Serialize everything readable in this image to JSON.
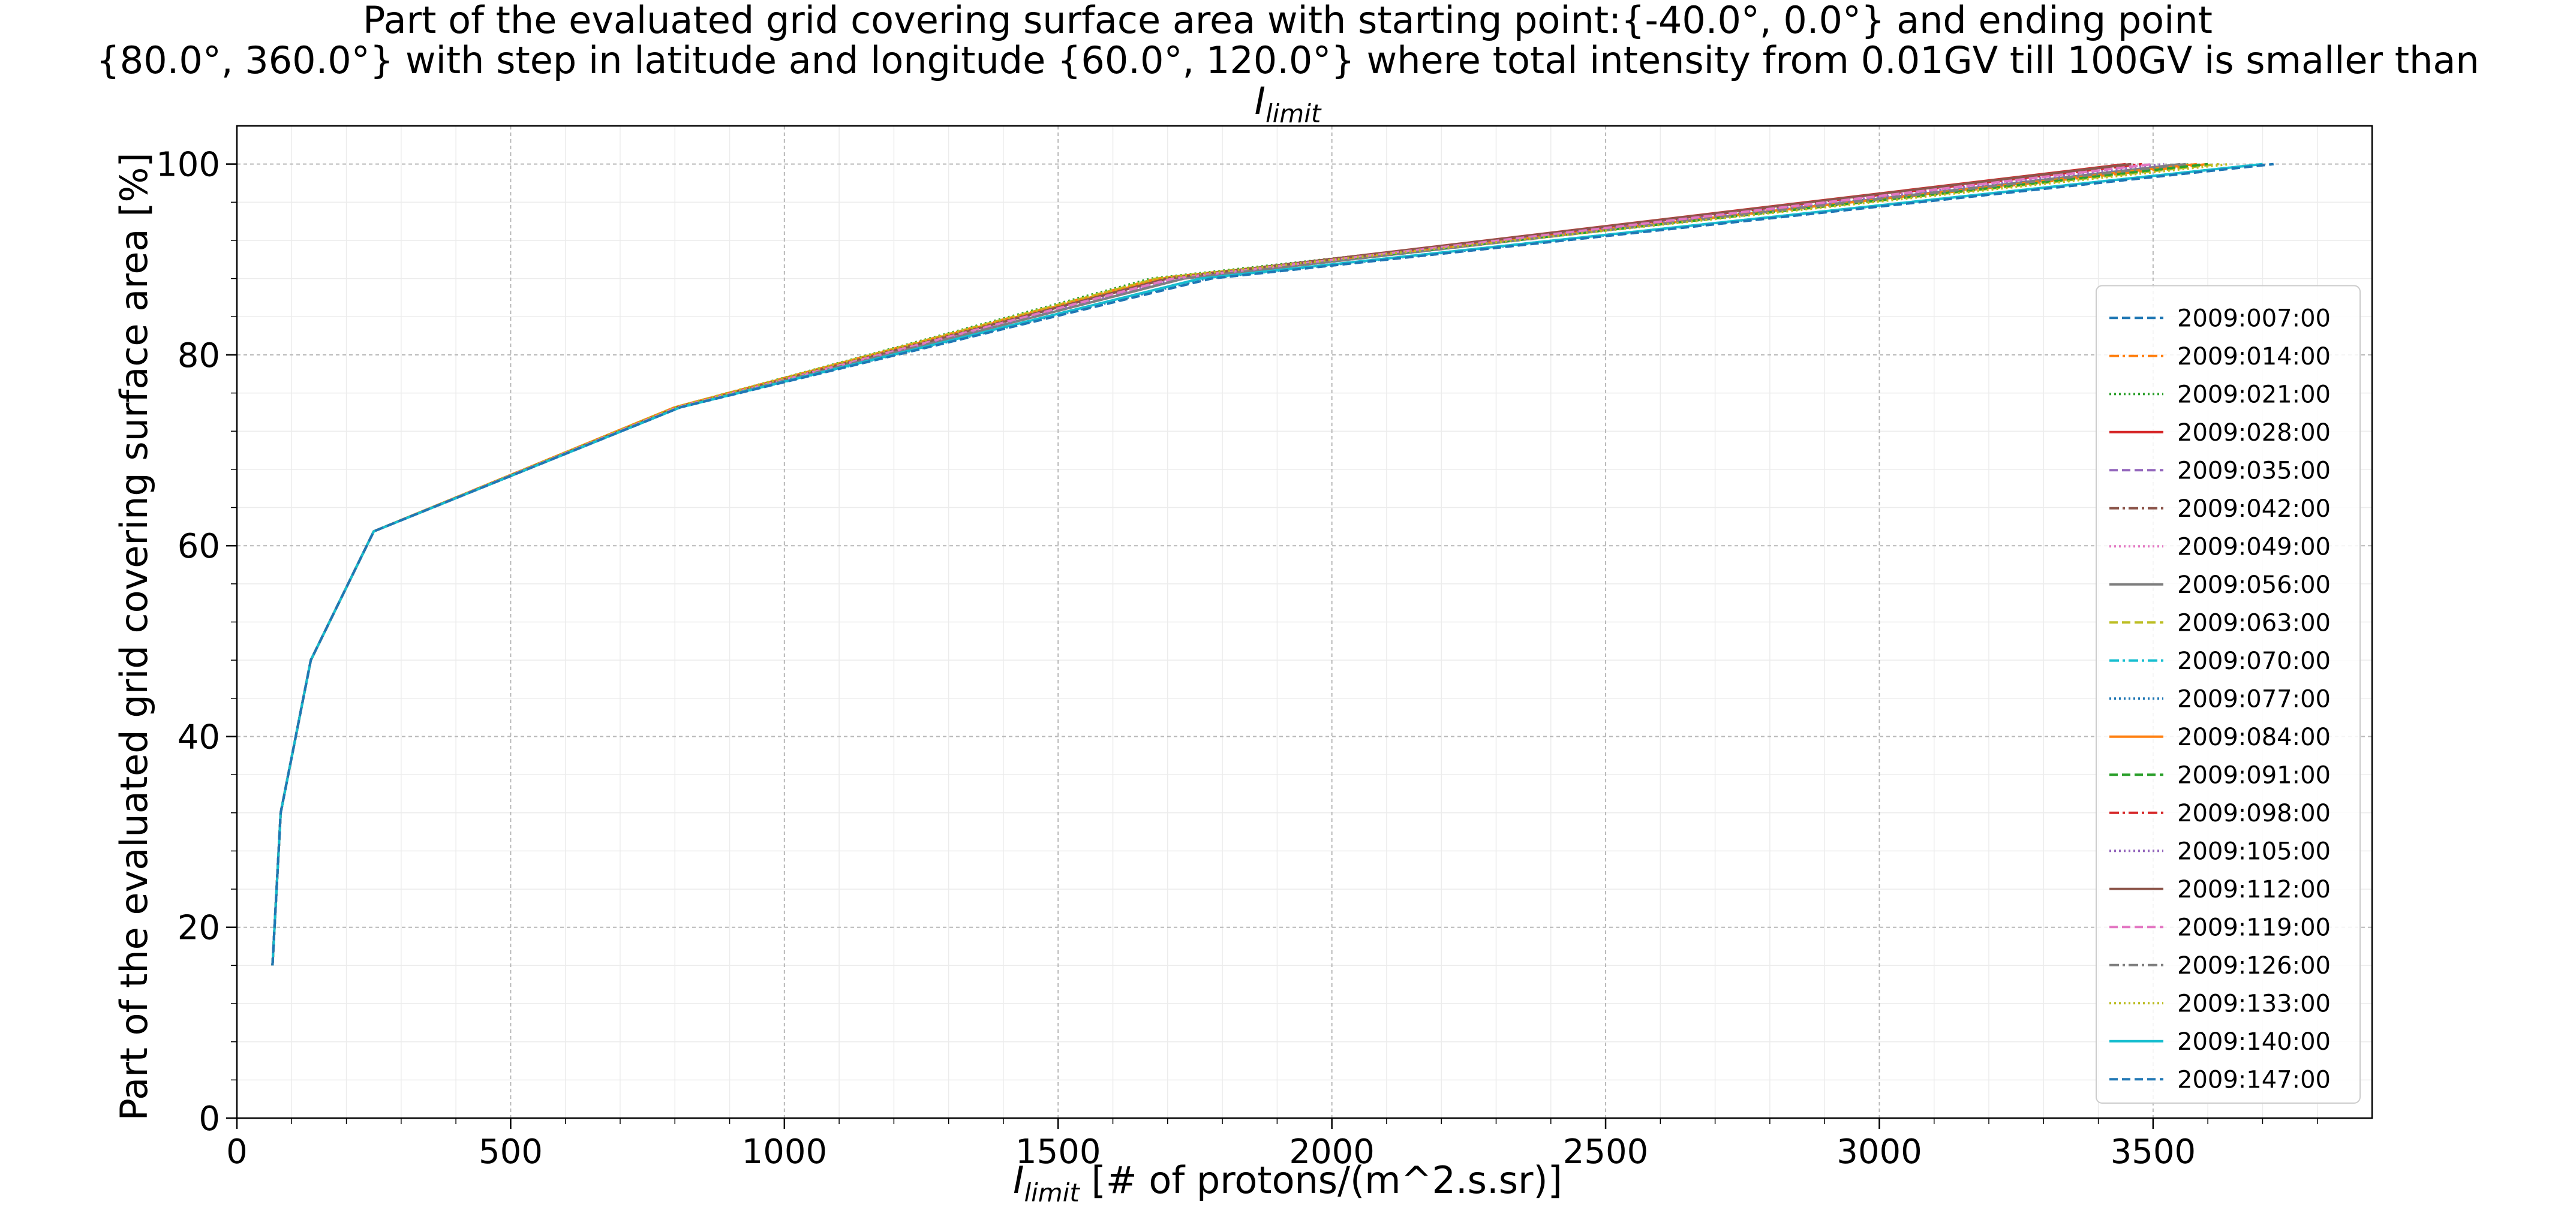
{
  "chart_data": {
    "type": "line",
    "title_lines": [
      "Part of the evaluated grid covering surface area with starting point:{-40.0°, 0.0°} and ending point",
      "{80.0°, 360.0°} with step in latitude and longitude {60.0°, 120.0°} where total intensity from 0.01GV till 100GV is smaller than"
    ],
    "title_math": {
      "base": "I",
      "sub": "limit"
    },
    "xlabel": {
      "base": "I",
      "sub": "limit",
      "rest": " [# of protons/(m^2.s.sr)]"
    },
    "ylabel": "Part of the evaluated grid covering surface area  [%]",
    "xlim": [
      0,
      3900
    ],
    "ylim": [
      0,
      104
    ],
    "xticks": [
      0,
      500,
      1000,
      1500,
      2000,
      2500,
      3000,
      3500
    ],
    "xtick_labels": [
      "0",
      "500",
      "1000",
      "1500",
      "2000",
      "2500",
      "3000",
      "3500"
    ],
    "yticks": [
      0,
      20,
      40,
      60,
      80,
      100
    ],
    "ytick_labels": [
      "0",
      "20",
      "40",
      "60",
      "80",
      "100"
    ],
    "grid": true,
    "minor_grid": true,
    "legend_position": "lower-right",
    "series": [
      {
        "name": "2009:007:00",
        "color": "#1f77b4",
        "dash": "dashed",
        "x": [
          65,
          80,
          135,
          250,
          810,
          1780,
          3720
        ],
        "y": [
          16,
          32,
          48,
          61.5,
          74.5,
          88,
          100
        ]
      },
      {
        "name": "2009:014:00",
        "color": "#ff7f0e",
        "dash": "dashdot",
        "x": [
          65,
          80,
          135,
          250,
          800,
          1680,
          3600
        ],
        "y": [
          16,
          32,
          48,
          61.5,
          74.5,
          88,
          100
        ]
      },
      {
        "name": "2009:021:00",
        "color": "#2ca02c",
        "dash": "dotted",
        "x": [
          65,
          80,
          135,
          250,
          800,
          1670,
          3570
        ],
        "y": [
          16,
          32,
          48,
          61.5,
          74.5,
          88,
          100
        ]
      },
      {
        "name": "2009:028:00",
        "color": "#d62728",
        "dash": "solid",
        "x": [
          65,
          80,
          135,
          250,
          805,
          1700,
          3450
        ],
        "y": [
          16,
          32,
          48,
          61.5,
          74.5,
          88,
          100
        ]
      },
      {
        "name": "2009:035:00",
        "color": "#9467bd",
        "dash": "dashed",
        "x": [
          65,
          80,
          135,
          250,
          810,
          1720,
          3500
        ],
        "y": [
          16,
          32,
          48,
          61.5,
          74.5,
          88,
          100
        ]
      },
      {
        "name": "2009:042:00",
        "color": "#8c564b",
        "dash": "dashdot",
        "x": [
          65,
          80,
          135,
          250,
          805,
          1700,
          3460
        ],
        "y": [
          16,
          32,
          48,
          61.5,
          74.5,
          88,
          100
        ]
      },
      {
        "name": "2009:049:00",
        "color": "#e377c2",
        "dash": "dotted",
        "x": [
          65,
          80,
          135,
          250,
          805,
          1710,
          3480
        ],
        "y": [
          16,
          32,
          48,
          61.5,
          74.5,
          88,
          100
        ]
      },
      {
        "name": "2009:056:00",
        "color": "#7f7f7f",
        "dash": "solid",
        "x": [
          65,
          80,
          135,
          250,
          810,
          1730,
          3550
        ],
        "y": [
          16,
          32,
          48,
          61.5,
          74.5,
          88,
          100
        ]
      },
      {
        "name": "2009:063:00",
        "color": "#bcbd22",
        "dash": "dashed",
        "x": [
          65,
          80,
          135,
          250,
          800,
          1680,
          3620
        ],
        "y": [
          16,
          32,
          48,
          61.5,
          74.5,
          88,
          100
        ]
      },
      {
        "name": "2009:070:00",
        "color": "#17becf",
        "dash": "dashdot",
        "x": [
          65,
          80,
          135,
          250,
          810,
          1760,
          3700
        ],
        "y": [
          16,
          32,
          48,
          61.5,
          74.5,
          88,
          100
        ]
      },
      {
        "name": "2009:077:00",
        "color": "#1f77b4",
        "dash": "dotted",
        "x": [
          65,
          80,
          135,
          250,
          810,
          1770,
          3700
        ],
        "y": [
          16,
          32,
          48,
          61.5,
          74.5,
          88,
          100
        ]
      },
      {
        "name": "2009:084:00",
        "color": "#ff7f0e",
        "dash": "solid",
        "x": [
          65,
          80,
          135,
          250,
          800,
          1690,
          3580
        ],
        "y": [
          16,
          32,
          48,
          61.5,
          74.5,
          88,
          100
        ]
      },
      {
        "name": "2009:091:00",
        "color": "#2ca02c",
        "dash": "dashed",
        "x": [
          65,
          80,
          135,
          250,
          805,
          1700,
          3600
        ],
        "y": [
          16,
          32,
          48,
          61.5,
          74.5,
          88,
          100
        ]
      },
      {
        "name": "2009:098:00",
        "color": "#d62728",
        "dash": "dashdot",
        "x": [
          65,
          80,
          135,
          250,
          805,
          1700,
          3480
        ],
        "y": [
          16,
          32,
          48,
          61.5,
          74.5,
          88,
          100
        ]
      },
      {
        "name": "2009:105:00",
        "color": "#9467bd",
        "dash": "dotted",
        "x": [
          65,
          80,
          135,
          250,
          810,
          1720,
          3520
        ],
        "y": [
          16,
          32,
          48,
          61.5,
          74.5,
          88,
          100
        ]
      },
      {
        "name": "2009:112:00",
        "color": "#8c564b",
        "dash": "solid",
        "x": [
          65,
          80,
          135,
          250,
          805,
          1700,
          3460
        ],
        "y": [
          16,
          32,
          48,
          61.5,
          74.5,
          88,
          100
        ]
      },
      {
        "name": "2009:119:00",
        "color": "#e377c2",
        "dash": "dashed",
        "x": [
          65,
          80,
          135,
          250,
          805,
          1710,
          3500
        ],
        "y": [
          16,
          32,
          48,
          61.5,
          74.5,
          88,
          100
        ]
      },
      {
        "name": "2009:126:00",
        "color": "#7f7f7f",
        "dash": "dashdot",
        "x": [
          65,
          80,
          135,
          250,
          810,
          1730,
          3560
        ],
        "y": [
          16,
          32,
          48,
          61.5,
          74.5,
          88,
          100
        ]
      },
      {
        "name": "2009:133:00",
        "color": "#bcbd22",
        "dash": "dotted",
        "x": [
          65,
          80,
          135,
          250,
          800,
          1680,
          3640
        ],
        "y": [
          16,
          32,
          48,
          61.5,
          74.5,
          88,
          100
        ]
      },
      {
        "name": "2009:140:00",
        "color": "#17becf",
        "dash": "solid",
        "x": [
          65,
          80,
          135,
          250,
          810,
          1760,
          3700
        ],
        "y": [
          16,
          32,
          48,
          61.5,
          74.5,
          88,
          100
        ]
      },
      {
        "name": "2009:147:00",
        "color": "#1f77b4",
        "dash": "dashed",
        "x": [
          65,
          80,
          135,
          250,
          810,
          1780,
          3720
        ],
        "y": [
          16,
          32,
          48,
          61.5,
          74.5,
          88,
          100
        ]
      }
    ]
  }
}
